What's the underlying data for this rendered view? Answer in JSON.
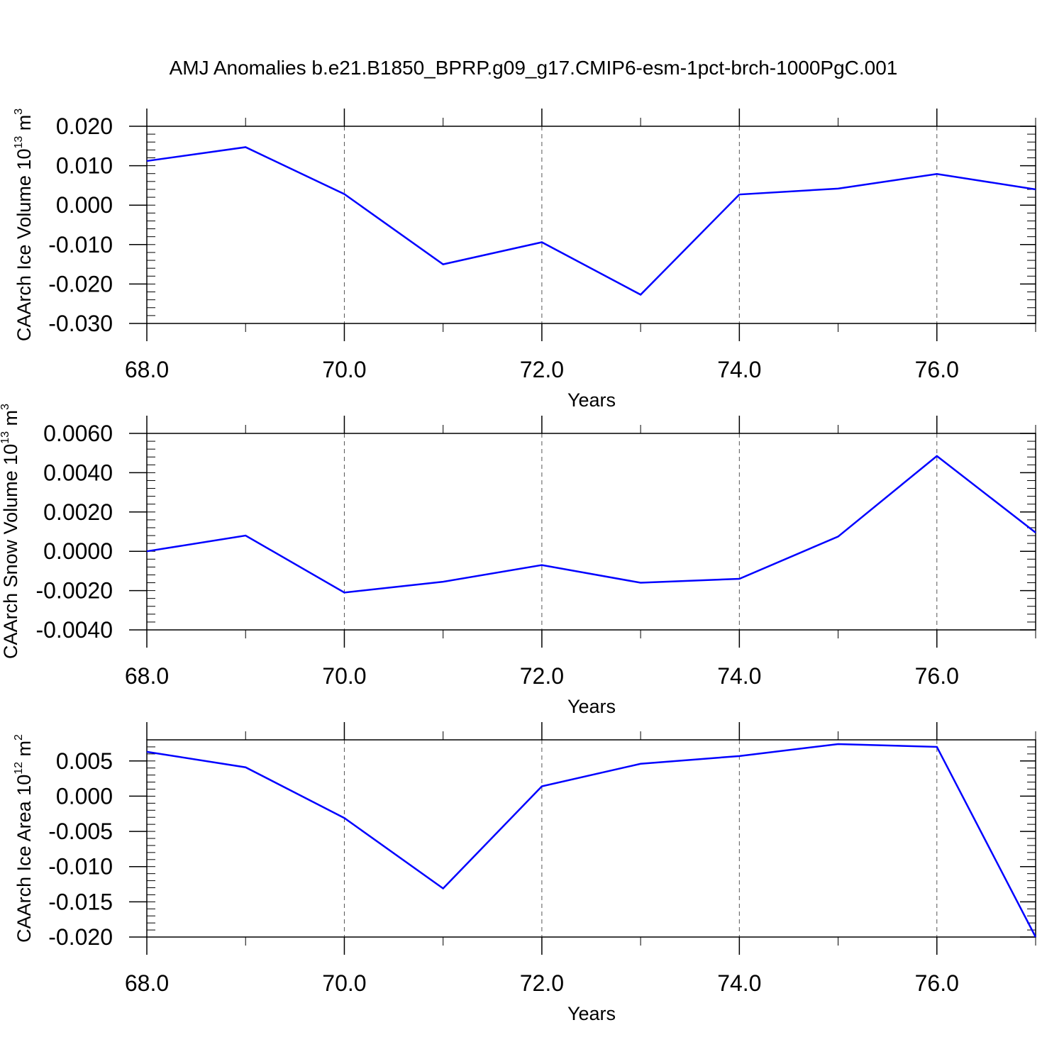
{
  "title": "AMJ Anomalies b.e21.B1850_BPRP.g09_g17.CMIP6-esm-1pct-brch-1000PgC.001",
  "colors": {
    "line": "#0000ff",
    "axis": "#000000",
    "grid": "#555555"
  },
  "chart_data": [
    {
      "type": "line",
      "ylabel": {
        "main": "CAArch Ice Volume 10",
        "exp": "13",
        "unit": " m",
        "unit_exp": "3"
      },
      "xlabel": "Years",
      "x": [
        68,
        69,
        70,
        71,
        72,
        73,
        74,
        75,
        76,
        77
      ],
      "series": [
        {
          "values": [
            0.0112,
            0.0147,
            0.0028,
            -0.015,
            -0.0094,
            -0.0227,
            0.0027,
            0.0042,
            0.0079,
            0.004
          ]
        }
      ],
      "xlim": [
        68,
        77
      ],
      "ylim": [
        -0.03,
        0.02
      ],
      "xticks": [
        68,
        70,
        72,
        74,
        76
      ],
      "xtick_labels": [
        "68.0",
        "70.0",
        "72.0",
        "74.0",
        "76.0"
      ],
      "yticks": [
        0.02,
        0.01,
        0.0,
        -0.01,
        -0.02,
        -0.03
      ],
      "ytick_labels": [
        "0.020",
        "0.010",
        "0.000",
        "-0.010",
        "-0.020",
        "-0.030"
      ],
      "y_minor_step": 0.002,
      "grid": "vertical dashed at major x ticks"
    },
    {
      "type": "line",
      "ylabel": {
        "main": "CAArch Snow Volume 10",
        "exp": "13",
        "unit": " m",
        "unit_exp": "3"
      },
      "xlabel": "Years",
      "x": [
        68,
        69,
        70,
        71,
        72,
        73,
        74,
        75,
        76,
        77
      ],
      "series": [
        {
          "values": [
            0.0,
            0.0008,
            -0.0021,
            -0.00155,
            -0.0007,
            -0.0016,
            -0.0014,
            0.00075,
            0.00485,
            0.00095
          ]
        }
      ],
      "xlim": [
        68,
        77
      ],
      "ylim": [
        -0.004,
        0.006
      ],
      "xticks": [
        68,
        70,
        72,
        74,
        76
      ],
      "xtick_labels": [
        "68.0",
        "70.0",
        "72.0",
        "74.0",
        "76.0"
      ],
      "yticks": [
        0.006,
        0.004,
        0.002,
        0.0,
        -0.002,
        -0.004
      ],
      "ytick_labels": [
        "0.0060",
        "0.0040",
        "0.0020",
        "0.0000",
        "-0.0020",
        "-0.0040"
      ],
      "y_minor_step": 0.0004,
      "grid": "vertical dashed at major x ticks"
    },
    {
      "type": "line",
      "ylabel": {
        "main": "CAArch Ice Area 10",
        "exp": "12",
        "unit": " m",
        "unit_exp": "2"
      },
      "xlabel": "Years",
      "x": [
        68,
        69,
        70,
        71,
        72,
        73,
        74,
        75,
        76,
        77
      ],
      "series": [
        {
          "values": [
            0.0063,
            0.0041,
            -0.0031,
            -0.0131,
            0.0014,
            0.0046,
            0.0057,
            0.0074,
            0.007,
            -0.02
          ]
        }
      ],
      "xlim": [
        68,
        77
      ],
      "ylim": [
        -0.02,
        0.008
      ],
      "xticks": [
        68,
        70,
        72,
        74,
        76
      ],
      "xtick_labels": [
        "68.0",
        "70.0",
        "72.0",
        "74.0",
        "76.0"
      ],
      "yticks": [
        0.005,
        0.0,
        -0.005,
        -0.01,
        -0.015,
        -0.02
      ],
      "ytick_labels": [
        "0.005",
        "0.000",
        "-0.005",
        "-0.010",
        "-0.015",
        "-0.020"
      ],
      "y_minor_step": 0.001,
      "grid": "vertical dashed at major x ticks"
    }
  ]
}
